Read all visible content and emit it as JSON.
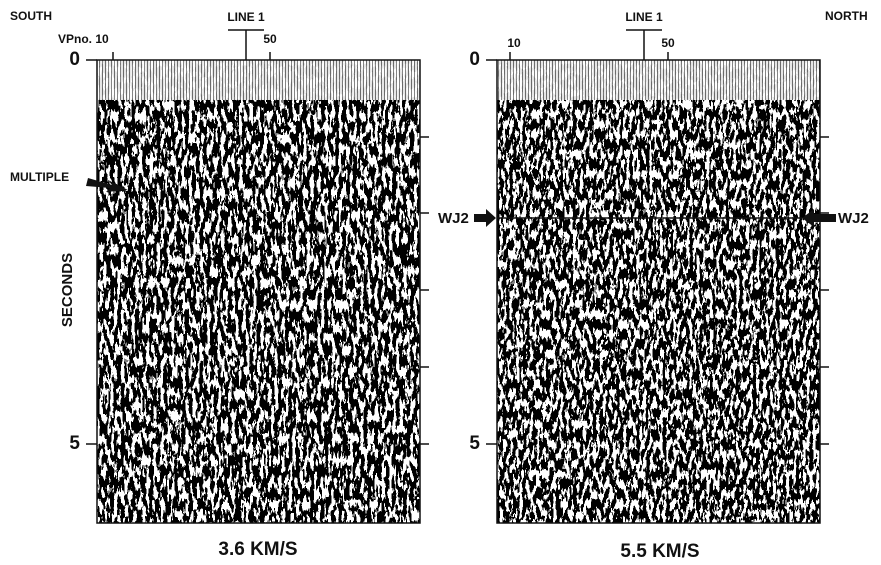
{
  "left_panel": {
    "direction": "SOUTH",
    "line": "LINE 1",
    "vp_start": "VPno. 10",
    "vp_mid": "50",
    "time_ticks": [
      "0",
      "5"
    ],
    "y_axis_label": "SECONDS",
    "annotation": "MULTIPLE",
    "caption": "3.6 KM/S"
  },
  "right_panel": {
    "direction": "NORTH",
    "line": "LINE 1",
    "vp_start": "10",
    "vp_mid": "50",
    "time_ticks": [
      "0",
      "5"
    ],
    "annotations": [
      "WJ2",
      "WJ2"
    ],
    "caption": "5.5 KM/S"
  }
}
